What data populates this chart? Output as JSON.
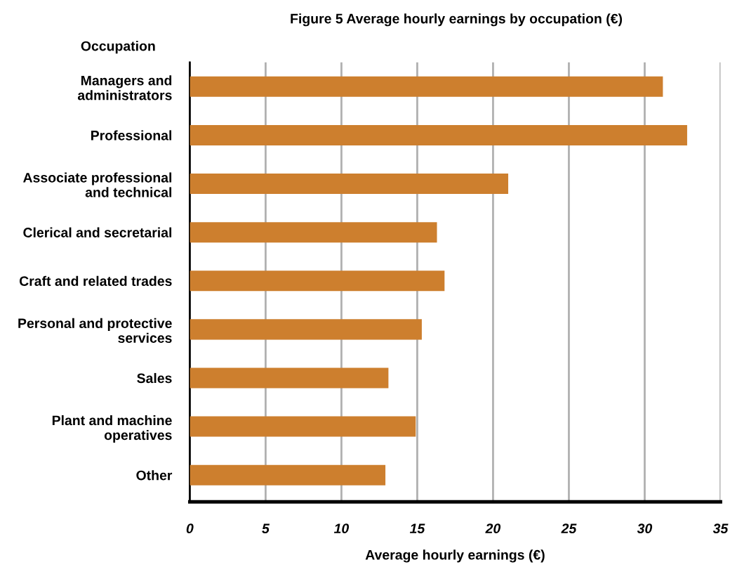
{
  "chart_data": {
    "type": "bar",
    "orientation": "horizontal",
    "title": "Figure 5 Average hourly earnings by occupation (€)",
    "xlabel": "Average hourly earnings (€)",
    "ylabel": "Occupation",
    "categories": [
      "Managers and\nadministrators",
      "Professional",
      "Associate professional\nand technical",
      "Clerical and secretarial",
      "Craft and related trades",
      "Personal and protective\nservices",
      "Sales",
      "Plant and machine\noperatives",
      "Other"
    ],
    "values": [
      31.2,
      32.8,
      21.0,
      16.3,
      16.8,
      15.3,
      13.1,
      14.9,
      12.9
    ],
    "color": "#cd7f2e",
    "xlim": [
      0,
      35
    ],
    "xticks": [
      0,
      5,
      10,
      15,
      20,
      25,
      30,
      35
    ],
    "grid": "x"
  }
}
